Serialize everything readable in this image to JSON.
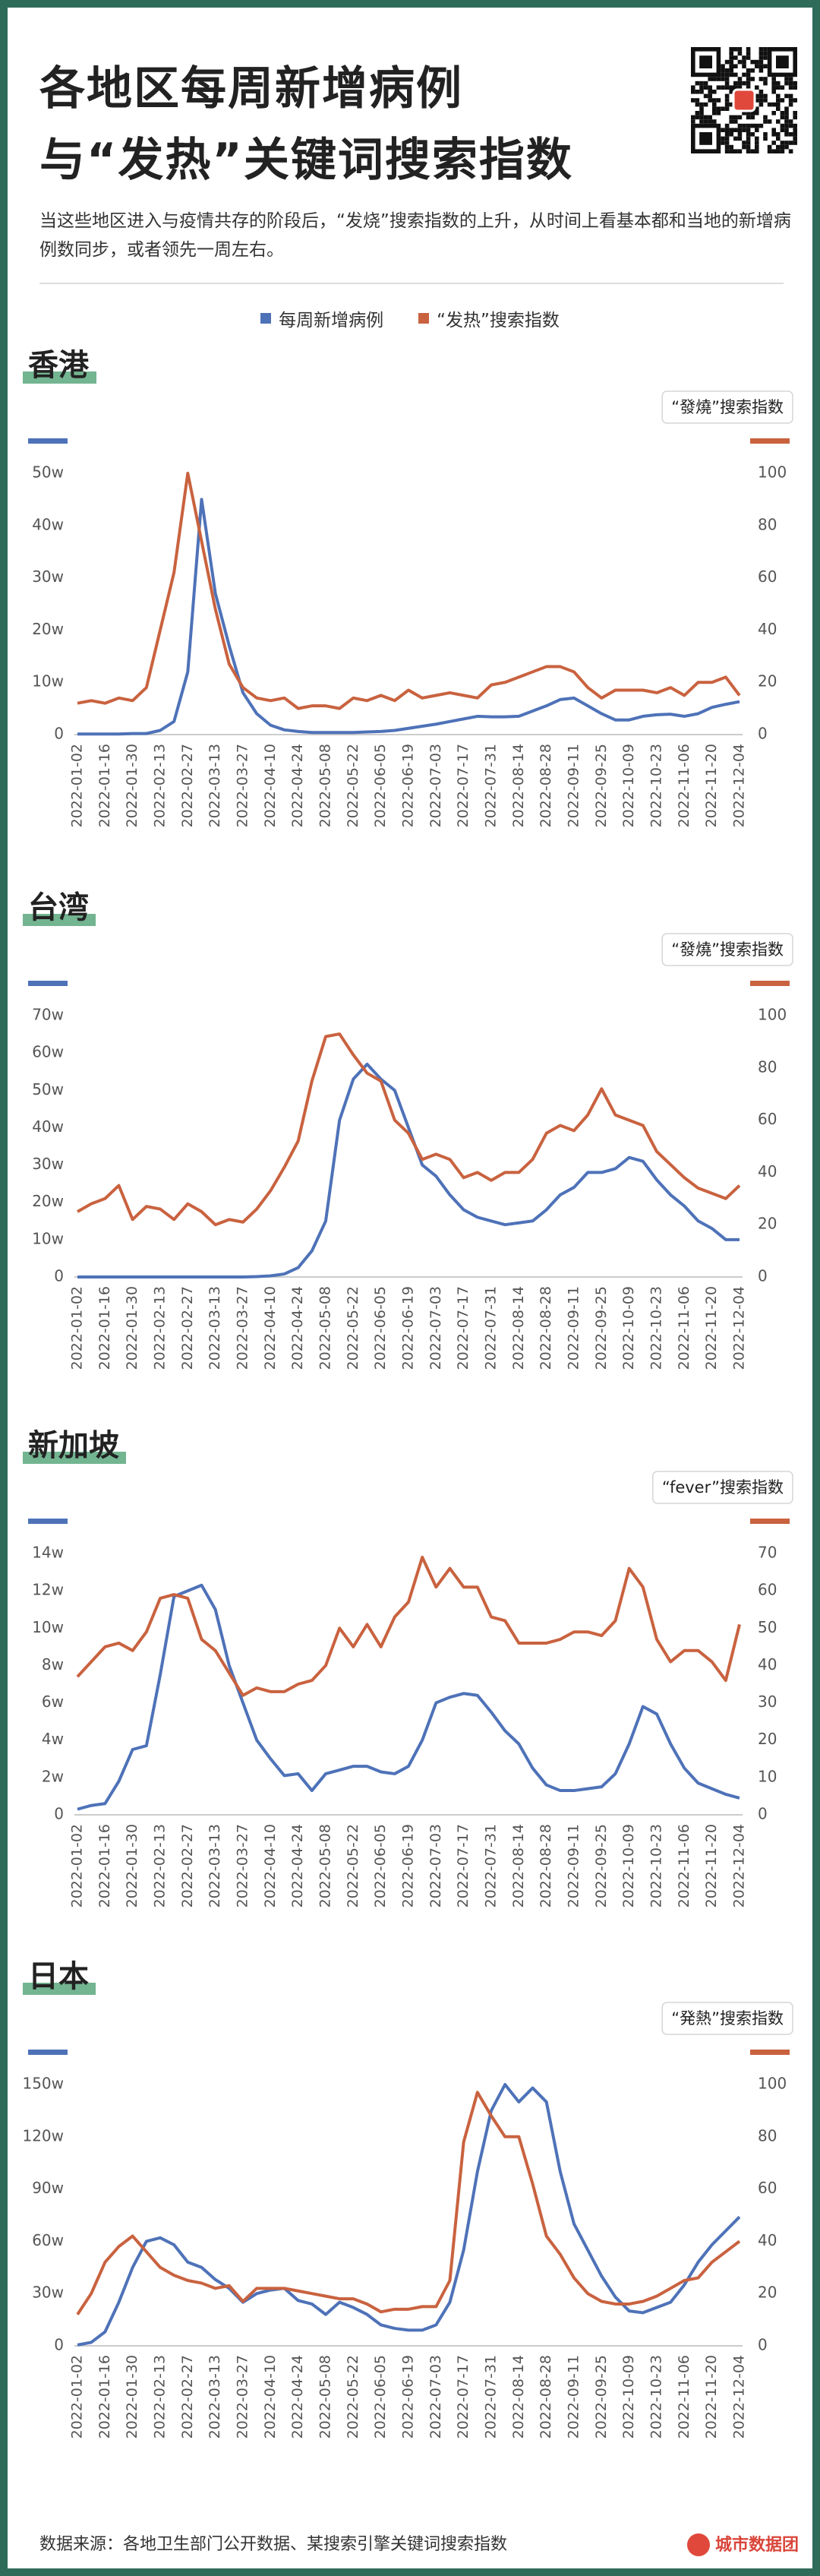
{
  "header": {
    "title": [
      "各地区每周新增病例",
      "与“发热”关键词搜索指数"
    ],
    "subtitle": "当这些地区进入与疫情共存的阶段后，“发烧”搜索指数的上升，从时间上看基本都和当地的新增病例数同步，或者领先一周左右。"
  },
  "legend": [
    {
      "name": "每周新增病例",
      "color": "#4e72b8"
    },
    {
      "name": "“发热”搜索指数",
      "color": "#c9623f"
    }
  ],
  "chart_data": [
    {
      "type": "line",
      "title": "香港",
      "y2label": "“發燒”搜索指数",
      "categories": [
        "2022-01-02",
        null,
        "2022-01-16",
        null,
        "2022-01-30",
        null,
        "2022-02-13",
        null,
        "2022-02-27",
        null,
        "2022-03-13",
        null,
        "2022-03-27",
        null,
        "2022-04-10",
        null,
        "2022-04-24",
        null,
        "2022-05-08",
        null,
        "2022-05-22",
        null,
        "2022-06-05",
        null,
        "2022-06-19",
        null,
        "2022-07-03",
        null,
        "2022-07-17",
        null,
        "2022-07-31",
        null,
        "2022-08-14",
        null,
        "2022-08-28",
        null,
        "2022-09-11",
        null,
        "2022-09-25",
        null,
        "2022-10-09",
        null,
        "2022-10-23",
        null,
        "2022-11-06",
        null,
        "2022-11-20",
        null,
        "2022-12-04"
      ],
      "series": [
        {
          "color": "#4e72b8",
          "values": [
            0.1,
            0.1,
            0.1,
            0.1,
            0.2,
            0.2,
            0.8,
            2.5,
            12,
            45,
            27,
            17,
            8,
            4,
            1.8,
            0.9,
            0.6,
            0.4,
            0.4,
            0.4,
            0.4,
            0.5,
            0.6,
            0.8,
            1.2,
            1.6,
            2,
            2.5,
            3,
            3.5,
            3.4,
            3.4,
            3.5,
            4.5,
            5.5,
            6.7,
            7,
            5.5,
            4,
            2.8,
            2.8,
            3.5,
            3.8,
            3.9,
            3.5,
            4,
            5.2,
            5.8,
            6.3
          ]
        },
        {
          "color": "#c9623f",
          "axis": "y2",
          "values": [
            12,
            13,
            12,
            14,
            13,
            18,
            40,
            62,
            100,
            74,
            48,
            27,
            18,
            14,
            13,
            14,
            10,
            11,
            11,
            10,
            14,
            13,
            15,
            13,
            17,
            14,
            15,
            16,
            15,
            14,
            19,
            20,
            22,
            24,
            26,
            26,
            24,
            18,
            14,
            17,
            17,
            17,
            16,
            18,
            15,
            20,
            20,
            22,
            15
          ]
        }
      ],
      "ylim": [
        0,
        50
      ],
      "yticks": [
        0,
        {
          "value": 10,
          "label": "10w"
        },
        {
          "value": 20,
          "label": "20w"
        },
        {
          "value": 30,
          "label": "30w"
        },
        {
          "value": 40,
          "label": "40w"
        },
        {
          "value": 50,
          "label": "50w"
        }
      ],
      "y2lim": [
        0,
        100
      ],
      "y2ticks": [
        0,
        20,
        40,
        60,
        80,
        100
      ]
    },
    {
      "type": "line",
      "title": "台湾",
      "y2label": "“發燒”搜索指数",
      "categories": [
        "2022-01-02",
        null,
        "2022-01-16",
        null,
        "2022-01-30",
        null,
        "2022-02-13",
        null,
        "2022-02-27",
        null,
        "2022-03-13",
        null,
        "2022-03-27",
        null,
        "2022-04-10",
        null,
        "2022-04-24",
        null,
        "2022-05-08",
        null,
        "2022-05-22",
        null,
        "2022-06-05",
        null,
        "2022-06-19",
        null,
        "2022-07-03",
        null,
        "2022-07-17",
        null,
        "2022-07-31",
        null,
        "2022-08-14",
        null,
        "2022-08-28",
        null,
        "2022-09-11",
        null,
        "2022-09-25",
        null,
        "2022-10-09",
        null,
        "2022-10-23",
        null,
        "2022-11-06",
        null,
        "2022-11-20",
        null,
        "2022-12-04"
      ],
      "series": [
        {
          "color": "#4e72b8",
          "values": [
            0,
            0,
            0,
            0,
            0,
            0,
            0,
            0,
            0,
            0,
            0,
            0,
            0,
            0.1,
            0.3,
            0.8,
            2.5,
            7,
            15,
            42,
            53,
            57,
            53,
            50,
            40,
            30,
            27,
            22,
            18,
            16,
            15,
            14,
            14.5,
            15,
            18,
            22,
            24,
            28,
            28,
            29,
            32,
            31,
            26,
            22,
            19,
            15,
            13,
            10,
            10
          ]
        },
        {
          "color": "#c9623f",
          "axis": "y2",
          "values": [
            25,
            28,
            30,
            35,
            22,
            27,
            26,
            22,
            28,
            25,
            20,
            22,
            21,
            26,
            33,
            42,
            52,
            75,
            92,
            93,
            85,
            78,
            75,
            60,
            55,
            45,
            47,
            45,
            38,
            40,
            37,
            40,
            40,
            45,
            55,
            58,
            56,
            62,
            72,
            62,
            60,
            58,
            48,
            43,
            38,
            34,
            32,
            30,
            35
          ]
        }
      ],
      "ylim": [
        0,
        70
      ],
      "yticks": [
        0,
        {
          "value": 10,
          "label": "10w"
        },
        {
          "value": 20,
          "label": "20w"
        },
        {
          "value": 30,
          "label": "30w"
        },
        {
          "value": 40,
          "label": "40w"
        },
        {
          "value": 50,
          "label": "50w"
        },
        {
          "value": 60,
          "label": "60w"
        },
        {
          "value": 70,
          "label": "70w"
        }
      ],
      "y2lim": [
        0,
        100
      ],
      "y2ticks": [
        0,
        20,
        40,
        60,
        80,
        100
      ]
    },
    {
      "type": "line",
      "title": "新加坡",
      "y2label": "“fever”搜索指数",
      "categories": [
        "2022-01-02",
        null,
        "2022-01-16",
        null,
        "2022-01-30",
        null,
        "2022-02-13",
        null,
        "2022-02-27",
        null,
        "2022-03-13",
        null,
        "2022-03-27",
        null,
        "2022-04-10",
        null,
        "2022-04-24",
        null,
        "2022-05-08",
        null,
        "2022-05-22",
        null,
        "2022-06-05",
        null,
        "2022-06-19",
        null,
        "2022-07-03",
        null,
        "2022-07-17",
        null,
        "2022-07-31",
        null,
        "2022-08-14",
        null,
        "2022-08-28",
        null,
        "2022-09-11",
        null,
        "2022-09-25",
        null,
        "2022-10-09",
        null,
        "2022-10-23",
        null,
        "2022-11-06",
        null,
        "2022-11-20",
        null,
        "2022-12-04"
      ],
      "series": [
        {
          "color": "#4e72b8",
          "values": [
            0.3,
            0.5,
            0.6,
            1.8,
            3.5,
            3.7,
            7.5,
            11.7,
            12,
            12.3,
            11,
            8,
            6,
            4,
            3,
            2.1,
            2.2,
            1.3,
            2.2,
            2.4,
            2.6,
            2.6,
            2.3,
            2.2,
            2.6,
            4,
            6,
            6.3,
            6.5,
            6.4,
            5.5,
            4.5,
            3.8,
            2.5,
            1.6,
            1.3,
            1.3,
            1.4,
            1.5,
            2.2,
            3.8,
            5.8,
            5.4,
            3.8,
            2.5,
            1.7,
            1.4,
            1.1,
            0.9
          ]
        },
        {
          "color": "#c9623f",
          "axis": "y2",
          "values": [
            37,
            41,
            45,
            46,
            44,
            49,
            58,
            59,
            58,
            47,
            44,
            38,
            32,
            34,
            33,
            33,
            35,
            36,
            40,
            50,
            45,
            51,
            45,
            53,
            57,
            69,
            61,
            66,
            61,
            61,
            53,
            52,
            46,
            46,
            46,
            47,
            49,
            49,
            48,
            52,
            66,
            61,
            47,
            41,
            44,
            44,
            41,
            36,
            51
          ]
        }
      ],
      "ylim": [
        0,
        14
      ],
      "yticks": [
        0,
        {
          "value": 2,
          "label": "2w"
        },
        {
          "value": 4,
          "label": "4w"
        },
        {
          "value": 6,
          "label": "6w"
        },
        {
          "value": 8,
          "label": "8w"
        },
        {
          "value": 10,
          "label": "10w"
        },
        {
          "value": 12,
          "label": "12w"
        },
        {
          "value": 14,
          "label": "14w"
        }
      ],
      "y2lim": [
        0,
        70
      ],
      "y2ticks": [
        0,
        10,
        20,
        30,
        40,
        50,
        60,
        70
      ]
    },
    {
      "type": "line",
      "title": "日本",
      "y2label": "“発熱”搜索指数",
      "categories": [
        "2022-01-02",
        null,
        "2022-01-16",
        null,
        "2022-01-30",
        null,
        "2022-02-13",
        null,
        "2022-02-27",
        null,
        "2022-03-13",
        null,
        "2022-03-27",
        null,
        "2022-04-10",
        null,
        "2022-04-24",
        null,
        "2022-05-08",
        null,
        "2022-05-22",
        null,
        "2022-06-05",
        null,
        "2022-06-19",
        null,
        "2022-07-03",
        null,
        "2022-07-17",
        null,
        "2022-07-31",
        null,
        "2022-08-14",
        null,
        "2022-08-28",
        null,
        "2022-09-11",
        null,
        "2022-09-25",
        null,
        "2022-10-09",
        null,
        "2022-10-23",
        null,
        "2022-11-06",
        null,
        "2022-11-20",
        null,
        "2022-12-04"
      ],
      "series": [
        {
          "color": "#4e72b8",
          "values": [
            0.5,
            2,
            8,
            25,
            45,
            60,
            62,
            58,
            48,
            45,
            38,
            33,
            25,
            30,
            32,
            33,
            26,
            24,
            18,
            25,
            22,
            18,
            12,
            10,
            9,
            9,
            12,
            25,
            55,
            100,
            135,
            150,
            140,
            148,
            140,
            100,
            70,
            55,
            40,
            28,
            20,
            19,
            22,
            25,
            35,
            48,
            58,
            66,
            74
          ]
        },
        {
          "color": "#c9623f",
          "axis": "y2",
          "values": [
            12,
            20,
            32,
            38,
            42,
            36,
            30,
            27,
            25,
            24,
            22,
            23,
            17,
            22,
            22,
            22,
            21,
            20,
            19,
            18,
            18,
            16,
            13,
            14,
            14,
            15,
            15,
            25,
            78,
            97,
            88,
            80,
            80,
            62,
            42,
            35,
            26,
            20,
            17,
            16,
            16,
            17,
            19,
            22,
            25,
            26,
            32,
            36,
            40
          ]
        }
      ],
      "ylim": [
        0,
        150
      ],
      "yticks": [
        0,
        {
          "value": 30,
          "label": "30w"
        },
        {
          "value": 60,
          "label": "60w"
        },
        {
          "value": 90,
          "label": "90w"
        },
        {
          "value": 120,
          "label": "120w"
        },
        {
          "value": 150,
          "label": "150w"
        }
      ],
      "y2lim": [
        0,
        100
      ],
      "y2ticks": [
        0,
        20,
        40,
        60,
        80,
        100
      ]
    }
  ],
  "footer": {
    "source": "数据来源：各地卫生部门公开数据、某搜索引擎关键词搜索指数",
    "brand": "城市数据团"
  }
}
